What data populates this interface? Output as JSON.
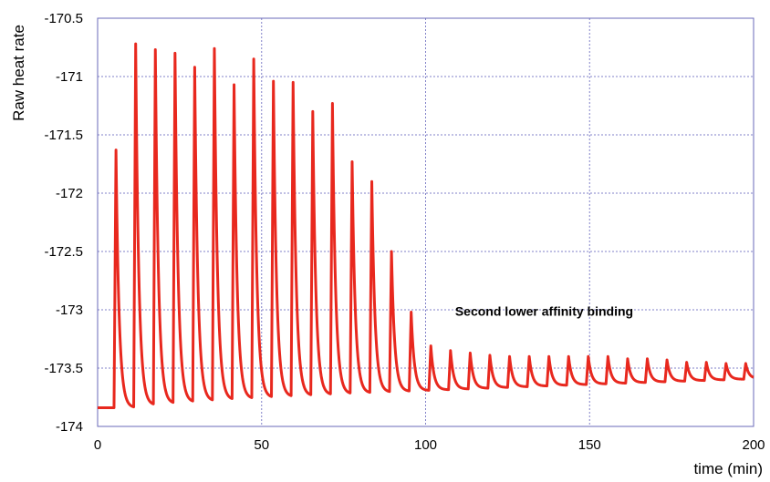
{
  "chart_data": {
    "type": "line",
    "title": "",
    "xlabel": "time (min)",
    "ylabel": "Raw heat rate",
    "xlim": [
      0,
      200
    ],
    "ylim": [
      -174,
      -170.5
    ],
    "xticks": [
      0,
      50,
      100,
      150,
      200
    ],
    "yticks": [
      -170.5,
      -171,
      -171.5,
      -172,
      -172.5,
      -173,
      -173.5,
      -174
    ],
    "grid": true,
    "color": "#e8281e",
    "baseline": -173.84,
    "baseline_end": -173.59,
    "injection_times": [
      5,
      11,
      17,
      23,
      29,
      35,
      41,
      47,
      53,
      59,
      65,
      71,
      77,
      83,
      89,
      95,
      101,
      107,
      113,
      119,
      125,
      131,
      137,
      143,
      149,
      155,
      161,
      167,
      173,
      179,
      185,
      191,
      197
    ],
    "peak_values": [
      -171.63,
      -170.72,
      -170.77,
      -170.8,
      -170.92,
      -170.76,
      -171.07,
      -170.85,
      -171.04,
      -171.05,
      -171.3,
      -171.23,
      -171.73,
      -171.9,
      -172.5,
      -173.02,
      -173.31,
      -173.35,
      -173.37,
      -173.39,
      -173.4,
      -173.4,
      -173.4,
      -173.4,
      -173.4,
      -173.4,
      -173.42,
      -173.42,
      -173.43,
      -173.45,
      -173.45,
      -173.46,
      -173.46
    ],
    "annotations": [
      {
        "text": "Second lower affinity binding",
        "x": 109,
        "y": -173.05
      }
    ]
  }
}
